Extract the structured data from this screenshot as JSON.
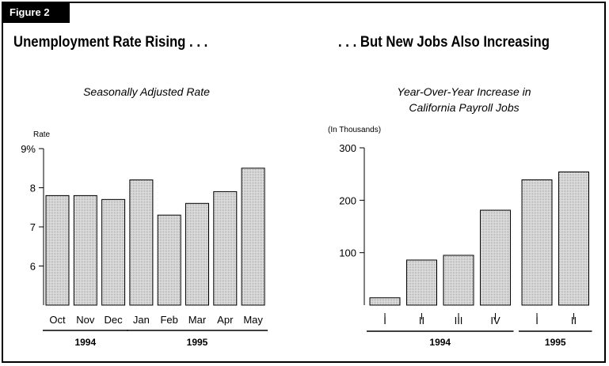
{
  "figure_label": "Figure 2",
  "left": {
    "heading": "Unemployment Rate Rising . . .",
    "subtitle": "Seasonally Adjusted Rate"
  },
  "right": {
    "heading": ". . . But New Jobs Also Increasing",
    "subtitle_line1": "Year-Over-Year Increase in",
    "subtitle_line2": "California Payroll Jobs"
  },
  "colors": {
    "bar_fill": "#e3e3e3",
    "ink": "#000000",
    "tag_bg": "#000000"
  },
  "chart_data": [
    {
      "type": "bar",
      "title": "Seasonally Adjusted Rate",
      "ylabel": "Rate",
      "ylim": [
        5,
        9
      ],
      "yticks": [
        6,
        7,
        8,
        9
      ],
      "ytick_labels": [
        "6",
        "7",
        "8",
        "9%"
      ],
      "categories": [
        "Oct",
        "Nov",
        "Dec",
        "Jan",
        "Feb",
        "Mar",
        "Apr",
        "May"
      ],
      "values": [
        7.8,
        7.8,
        7.7,
        8.2,
        7.3,
        7.6,
        7.9,
        8.5
      ],
      "groups": [
        {
          "label": "1994",
          "start": 0,
          "end": 2
        },
        {
          "label": "1995",
          "start": 3,
          "end": 7
        }
      ],
      "grid": false
    },
    {
      "type": "bar",
      "title": "Year-Over-Year Increase in California Payroll Jobs",
      "ylabel": "(In Thousands)",
      "ylim": [
        0,
        300
      ],
      "yticks": [
        100,
        200,
        300
      ],
      "ytick_labels": [
        "100",
        "200",
        "300"
      ],
      "categories": [
        "I",
        "II",
        "III",
        "IV",
        "I",
        "II"
      ],
      "values": [
        14,
        86,
        95,
        181,
        239,
        254
      ],
      "groups": [
        {
          "label": "1994",
          "start": 0,
          "end": 3
        },
        {
          "label": "1995",
          "start": 4,
          "end": 5
        }
      ],
      "grid": false
    }
  ]
}
